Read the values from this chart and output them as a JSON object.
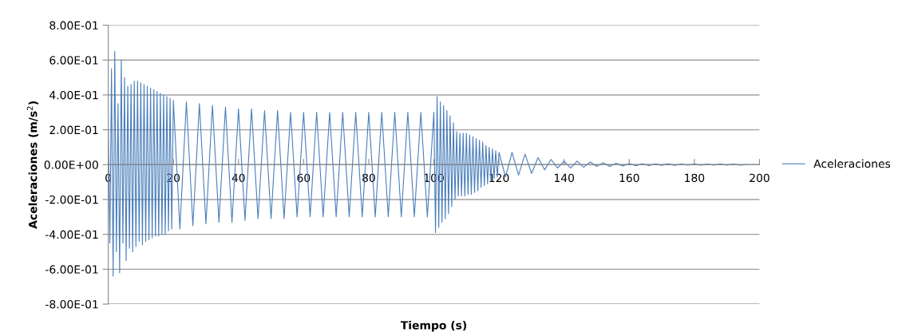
{
  "chart_data": {
    "type": "line",
    "xlabel": "Tiempo (s)",
    "ylabel": "Aceleraciones (m/s$^{2}$)",
    "x": [
      0,
      0.5,
      1,
      1.5,
      2,
      2.5,
      3,
      3.5,
      4,
      4.5,
      5,
      5.5,
      6,
      6.5,
      7,
      7.5,
      8,
      8.5,
      9,
      9.5,
      10,
      10.5,
      11,
      11.5,
      12,
      12.5,
      13,
      13.5,
      14,
      14.5,
      15,
      15.5,
      16,
      16.5,
      17,
      17.5,
      18,
      18.5,
      19,
      19.5,
      20,
      22,
      24,
      26,
      28,
      30,
      32,
      34,
      36,
      38,
      40,
      42,
      44,
      46,
      48,
      50,
      52,
      54,
      56,
      58,
      60,
      62,
      64,
      66,
      68,
      70,
      72,
      74,
      76,
      78,
      80,
      82,
      84,
      86,
      88,
      90,
      92,
      94,
      96,
      98,
      100,
      100.5,
      101,
      101.5,
      102,
      102.5,
      103,
      103.5,
      104,
      104.5,
      105,
      105.5,
      106,
      106.5,
      107,
      107.5,
      108,
      108.5,
      109,
      109.5,
      110,
      110.5,
      111,
      111.5,
      112,
      112.5,
      113,
      113.5,
      114,
      114.5,
      115,
      115.5,
      116,
      116.5,
      117,
      117.5,
      118,
      118.5,
      119,
      119.5,
      120,
      122,
      124,
      126,
      128,
      130,
      132,
      134,
      136,
      138,
      140,
      142,
      144,
      146,
      148,
      150,
      152,
      154,
      156,
      158,
      160,
      162,
      164,
      166,
      168,
      170,
      172,
      174,
      176,
      178,
      180,
      182,
      184,
      186,
      188,
      190,
      192,
      194,
      196
    ],
    "series": [
      {
        "name": "Aceleraciones",
        "color": "#4a7ebb",
        "values": [
          0.2,
          -0.45,
          0.55,
          -0.64,
          0.65,
          -0.5,
          0.35,
          -0.62,
          0.6,
          -0.45,
          0.5,
          -0.55,
          0.45,
          -0.48,
          0.46,
          -0.5,
          0.48,
          -0.47,
          0.48,
          -0.44,
          0.47,
          -0.46,
          0.46,
          -0.44,
          0.45,
          -0.43,
          0.44,
          -0.42,
          0.43,
          -0.41,
          0.42,
          -0.41,
          0.41,
          -0.4,
          0.4,
          -0.4,
          0.39,
          -0.38,
          0.38,
          -0.37,
          0.37,
          -0.37,
          0.36,
          -0.35,
          0.35,
          -0.34,
          0.34,
          -0.33,
          0.33,
          -0.33,
          0.32,
          -0.32,
          0.32,
          -0.31,
          0.31,
          -0.31,
          0.31,
          -0.31,
          0.3,
          -0.3,
          0.3,
          -0.3,
          0.3,
          -0.3,
          0.3,
          -0.3,
          0.3,
          -0.3,
          0.3,
          -0.3,
          0.3,
          -0.3,
          0.3,
          -0.3,
          0.3,
          -0.3,
          0.3,
          -0.3,
          0.3,
          -0.3,
          0.3,
          -0.39,
          0.39,
          -0.36,
          0.36,
          -0.33,
          0.34,
          -0.31,
          0.31,
          -0.28,
          0.28,
          -0.24,
          0.24,
          -0.2,
          0.19,
          -0.18,
          0.18,
          -0.18,
          0.18,
          -0.18,
          0.18,
          -0.17,
          0.17,
          -0.17,
          0.16,
          -0.16,
          0.15,
          -0.15,
          0.14,
          -0.13,
          0.13,
          -0.12,
          0.11,
          -0.11,
          0.1,
          -0.09,
          0.09,
          -0.08,
          0.08,
          -0.07,
          0.07,
          -0.07,
          0.07,
          -0.06,
          0.06,
          -0.05,
          0.04,
          -0.03,
          0.03,
          -0.02,
          0.02,
          -0.02,
          0.02,
          -0.015,
          0.015,
          -0.01,
          0.01,
          -0.01,
          0.008,
          -0.008,
          0.006,
          -0.006,
          0.005,
          -0.005,
          0.004,
          -0.004,
          0.004,
          -0.004,
          0.003,
          -0.003,
          0.003,
          -0.003,
          0.003,
          -0.003,
          0.003,
          -0.003,
          0.003,
          -0.003,
          0
        ]
      }
    ],
    "xlim": [
      0,
      200
    ],
    "xticks": [
      0,
      20,
      40,
      60,
      80,
      100,
      120,
      140,
      160,
      180,
      200
    ],
    "ylim": [
      -0.8,
      0.8
    ],
    "yticks": [
      {
        "value": -0.8,
        "label": "-8.00E-01"
      },
      {
        "value": -0.6,
        "label": "-6.00E-01"
      },
      {
        "value": -0.4,
        "label": "-4.00E-01"
      },
      {
        "value": -0.2,
        "label": "-2.00E-01"
      },
      {
        "value": 0,
        "label": "0.00E+00"
      },
      {
        "value": 0.2,
        "label": "2.00E-01"
      },
      {
        "value": 0.4,
        "label": "4.00E-01"
      },
      {
        "value": 0.6,
        "label": "6.00E-01"
      },
      {
        "value": 0.8,
        "label": "8.00E-01"
      }
    ],
    "grid": "y",
    "legend": "right",
    "marker": "none",
    "line_style": "solid"
  }
}
